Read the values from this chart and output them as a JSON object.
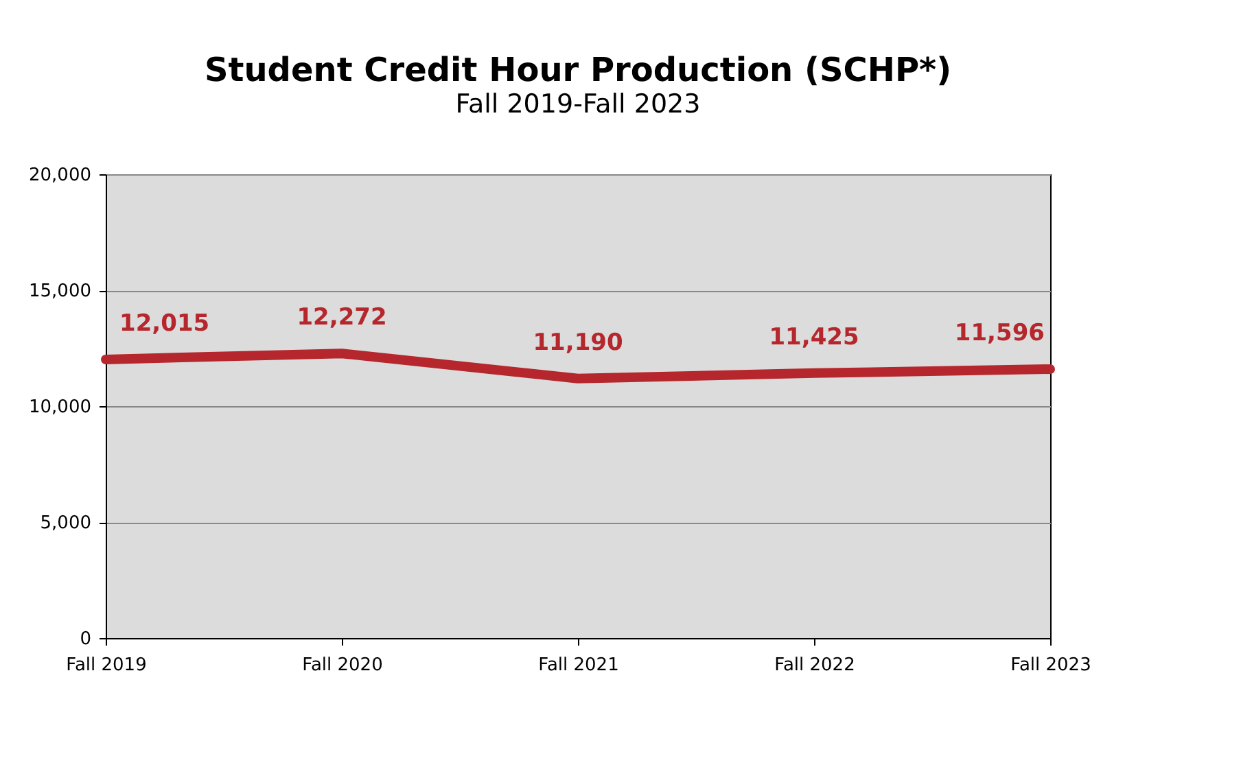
{
  "chart_data": {
    "type": "line",
    "title": "Student Credit Hour Production (SCHP*)",
    "subtitle": "Fall 2019-Fall 2023",
    "categories": [
      "Fall 2019",
      "Fall 2020",
      "Fall 2021",
      "Fall 2022",
      "Fall 2023"
    ],
    "series": [
      {
        "color": "#b5272d",
        "values": [
          12015,
          12272,
          11190,
          11425,
          11596
        ],
        "value_labels": [
          "12,015",
          "12,272",
          "11,190",
          "11,425",
          "11,596"
        ]
      }
    ],
    "ylim": [
      0,
      20000
    ],
    "yticks": [
      {
        "value": 0,
        "label": "0"
      },
      {
        "value": 5000,
        "label": "5,000"
      },
      {
        "value": 10000,
        "label": "10,000"
      },
      {
        "value": 15000,
        "label": "15,000"
      },
      {
        "value": 20000,
        "label": "20,000"
      }
    ],
    "grid": "y",
    "marker": "none",
    "line_style": "solid"
  }
}
